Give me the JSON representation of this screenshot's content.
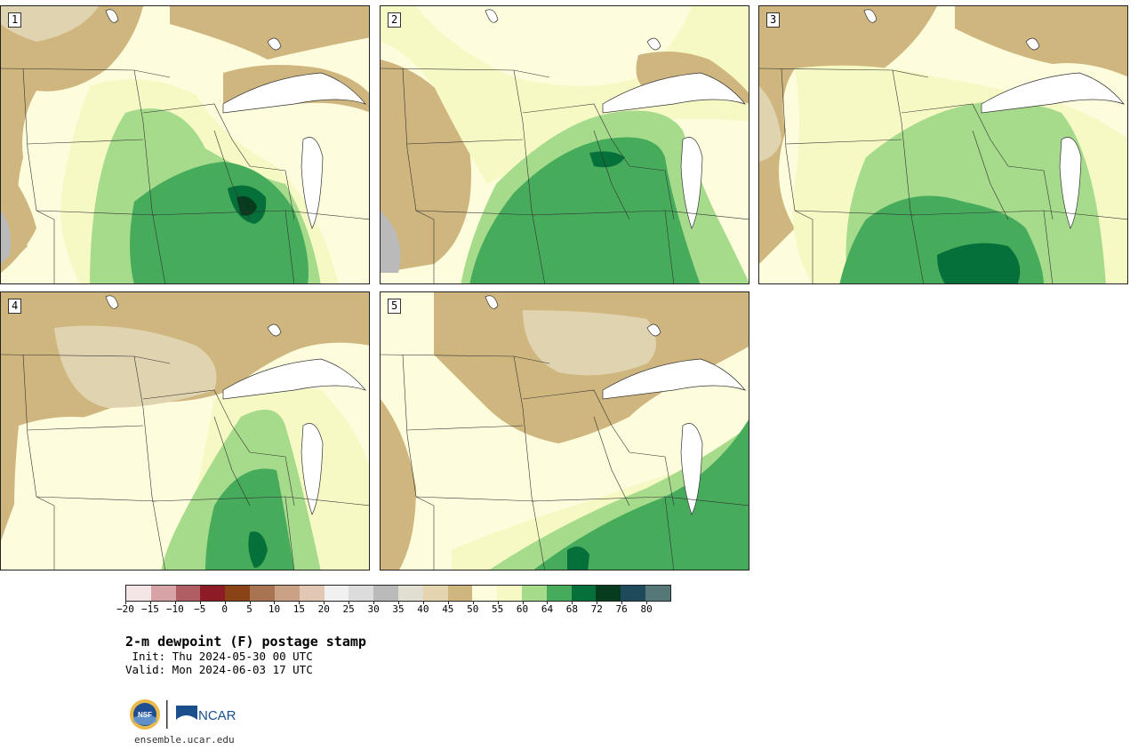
{
  "panels": [
    {
      "label": "1"
    },
    {
      "label": "2"
    },
    {
      "label": "3"
    },
    {
      "label": "4"
    },
    {
      "label": "5"
    }
  ],
  "colorbar": {
    "colors": [
      "#f4e6e6",
      "#d7a3a6",
      "#b05e64",
      "#8d1c26",
      "#8a4316",
      "#a87451",
      "#c9a184",
      "#e2c7b5",
      "#f1f1f1",
      "#dcdcdc",
      "#bababa",
      "#e0dfd2",
      "#e5d4b0",
      "#cfb57e",
      "#fdfcdc",
      "#f6f9c4",
      "#a6db8c",
      "#46ac5c",
      "#05703a",
      "#063b1d",
      "#1f4a5c",
      "#567778"
    ],
    "tick_labels": [
      "−20",
      "−15",
      "−10",
      "−5",
      "0",
      "5",
      "10",
      "15",
      "20",
      "25",
      "30",
      "35",
      "40",
      "45",
      "50",
      "55",
      "60",
      "64",
      "68",
      "72",
      "76",
      "80"
    ]
  },
  "title": "2-m dewpoint (F) postage stamp",
  "init_line": " Init: Thu 2024-05-30 00 UTC",
  "valid_line": "Valid: Mon 2024-06-03 17 UTC",
  "logos": {
    "nsf": "NSF",
    "ncar": "NCAR"
  },
  "site": "ensemble.ucar.edu"
}
